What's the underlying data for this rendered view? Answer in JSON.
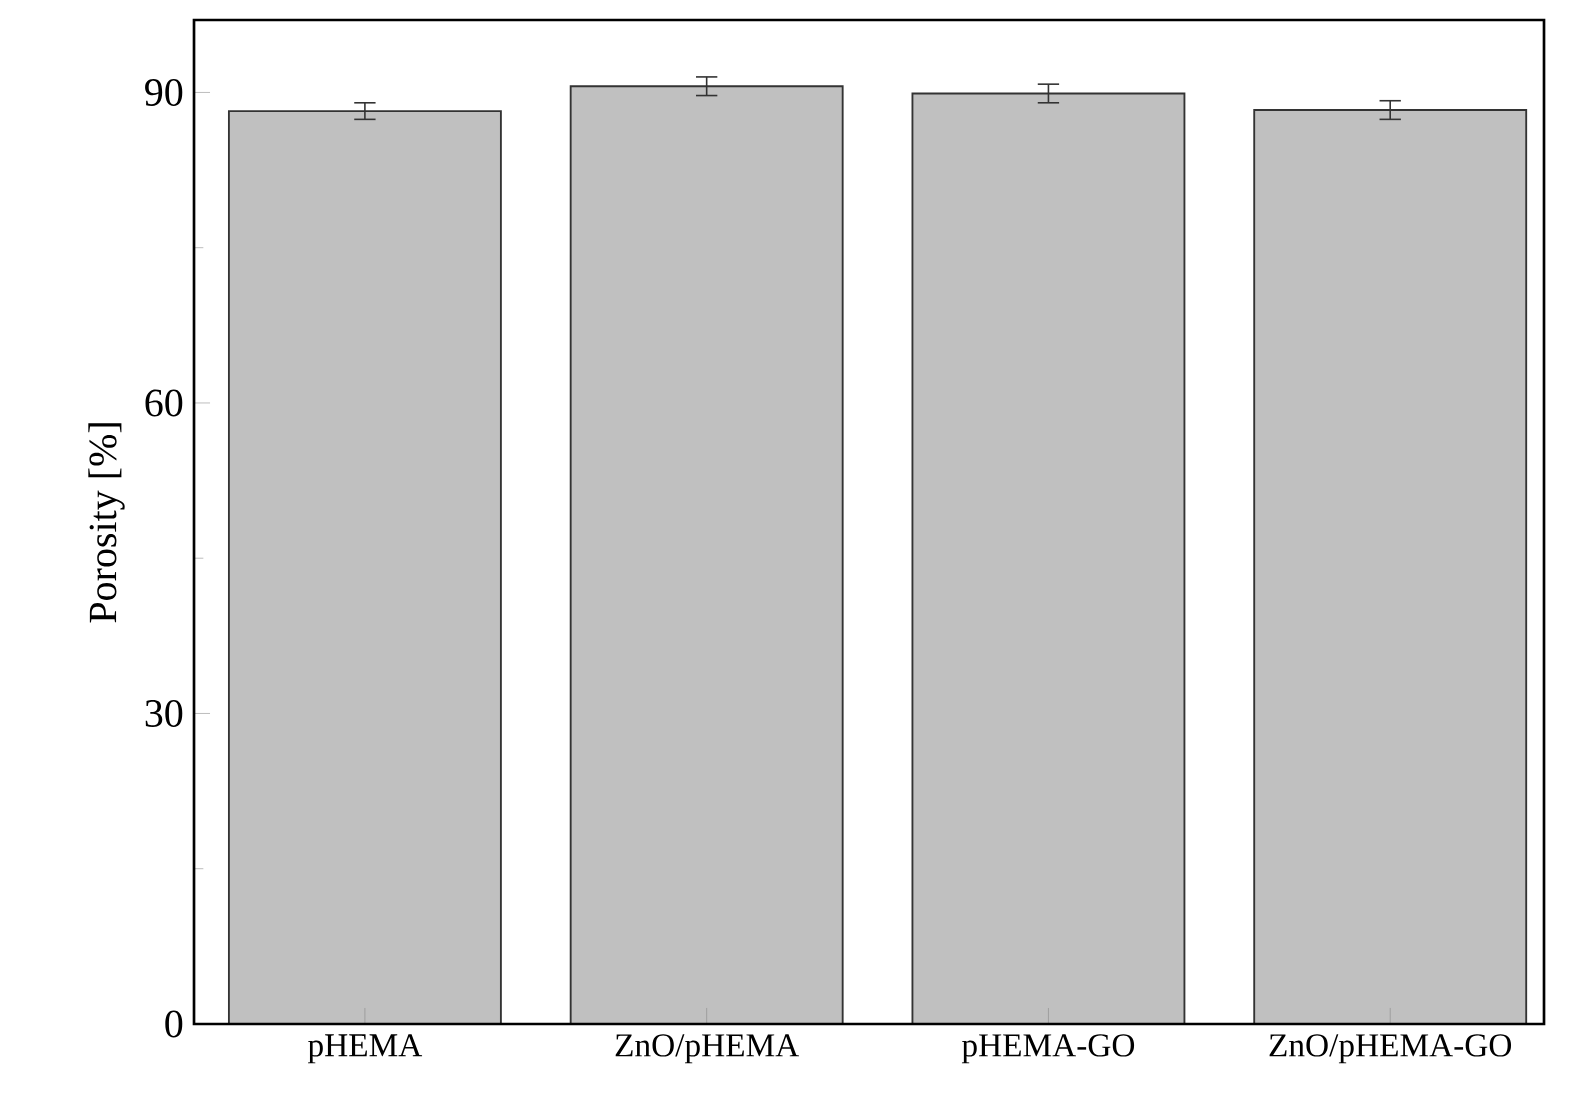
{
  "chart_data": {
    "type": "bar",
    "ylabel": "Porosity [%]",
    "categories": [
      "pHEMA",
      "ZnO/pHEMA",
      "pHEMA-GO",
      "ZnO/pHEMA-GO"
    ],
    "values": [
      88.2,
      90.6,
      89.9,
      88.3
    ],
    "errors": [
      0.8,
      0.9,
      0.9,
      0.9
    ],
    "color": "#c0c0c0",
    "ylim": [
      0,
      97
    ],
    "yticks": [
      0,
      30,
      60,
      90
    ],
    "grid": false
  }
}
